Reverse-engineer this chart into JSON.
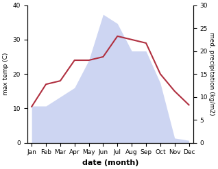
{
  "months": [
    "Jan",
    "Feb",
    "Mar",
    "Apr",
    "May",
    "Jun",
    "Jul",
    "Aug",
    "Sep",
    "Oct",
    "Nov",
    "Dec"
  ],
  "month_positions": [
    0,
    1,
    2,
    3,
    4,
    5,
    6,
    7,
    8,
    9,
    10,
    11
  ],
  "temperature": [
    10.5,
    17.0,
    18.0,
    24.0,
    24.0,
    25.0,
    31.0,
    30.0,
    29.0,
    20.0,
    15.0,
    11.0
  ],
  "precipitation": [
    8.0,
    8.0,
    10.0,
    12.0,
    18.0,
    28.0,
    26.0,
    20.0,
    20.0,
    13.0,
    1.0,
    0.5
  ],
  "temp_color": "#b03040",
  "precip_color_fill": "#c5cef0",
  "temp_ylim": [
    0,
    40
  ],
  "precip_ylim": [
    0,
    30
  ],
  "xlabel": "date (month)",
  "ylabel_left": "max temp (C)",
  "ylabel_right": "med. precipitation (kg/m2)",
  "figsize": [
    3.18,
    2.47
  ],
  "dpi": 100
}
